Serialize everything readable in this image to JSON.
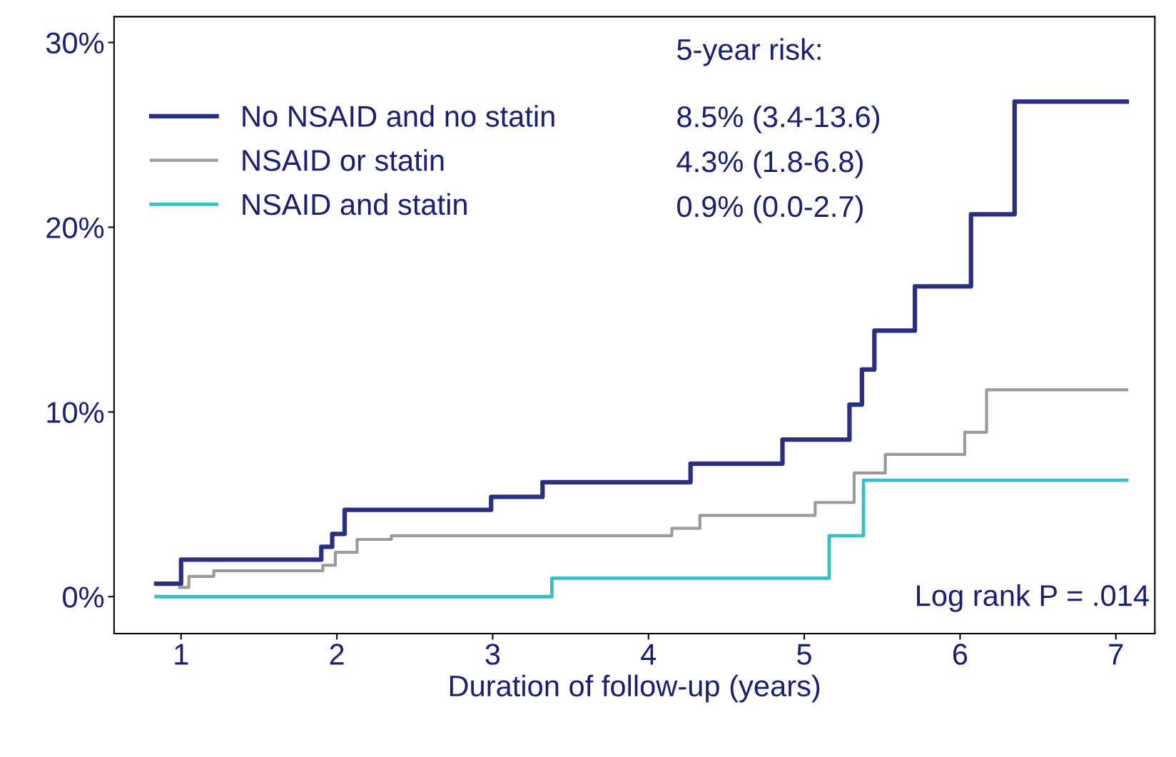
{
  "chart_data": {
    "type": "step",
    "xlabel": "Duration of follow-up (years)",
    "xlim": [
      0.57,
      7.25
    ],
    "xticks": [
      1,
      2,
      3,
      4,
      5,
      6,
      7
    ],
    "ylim": [
      -2.0,
      31.4
    ],
    "yticks": [
      {
        "value": 0,
        "label": "0%"
      },
      {
        "value": 10,
        "label": "10%"
      },
      {
        "value": 20,
        "label": "20%"
      },
      {
        "value": 30,
        "label": "30%"
      }
    ],
    "grid": false,
    "legend": "top left",
    "line_style": "solid",
    "marker": "none",
    "series": [
      {
        "name": "No NSAID and no statin",
        "color": "#2a2f7f",
        "x": [
          0.84,
          1.0,
          1.9,
          1.97,
          2.05,
          2.99,
          3.32,
          4.27,
          4.86,
          5.29,
          5.37,
          5.45,
          5.71,
          6.07,
          6.35,
          7.07
        ],
        "values": [
          0.7,
          2.0,
          2.7,
          3.4,
          4.7,
          5.4,
          6.2,
          7.2,
          8.5,
          10.4,
          12.3,
          14.4,
          16.8,
          20.7,
          26.8,
          26.8
        ]
      },
      {
        "name": "NSAID or statin",
        "color": "#9a9a9a",
        "x": [
          0.99,
          1.05,
          1.21,
          1.91,
          1.99,
          2.13,
          2.35,
          4.15,
          4.33,
          5.07,
          5.32,
          5.52,
          6.03,
          6.17,
          7.07
        ],
        "values": [
          0.5,
          1.1,
          1.4,
          1.7,
          2.4,
          3.1,
          3.3,
          3.7,
          4.4,
          5.1,
          6.7,
          7.7,
          8.9,
          11.2,
          11.2
        ]
      },
      {
        "name": "NSAID and statin",
        "color": "#3cbcc4",
        "x": [
          0.84,
          3.38,
          5.16,
          5.38,
          7.07
        ],
        "values": [
          0.0,
          1.0,
          3.3,
          6.3,
          6.3
        ]
      }
    ],
    "annotations": [
      "5-year risk:",
      "8.5% (3.4-13.6)",
      "4.3% (1.8-6.8)",
      "0.9% (0.0-2.7)",
      "Log rank P = .014"
    ]
  }
}
